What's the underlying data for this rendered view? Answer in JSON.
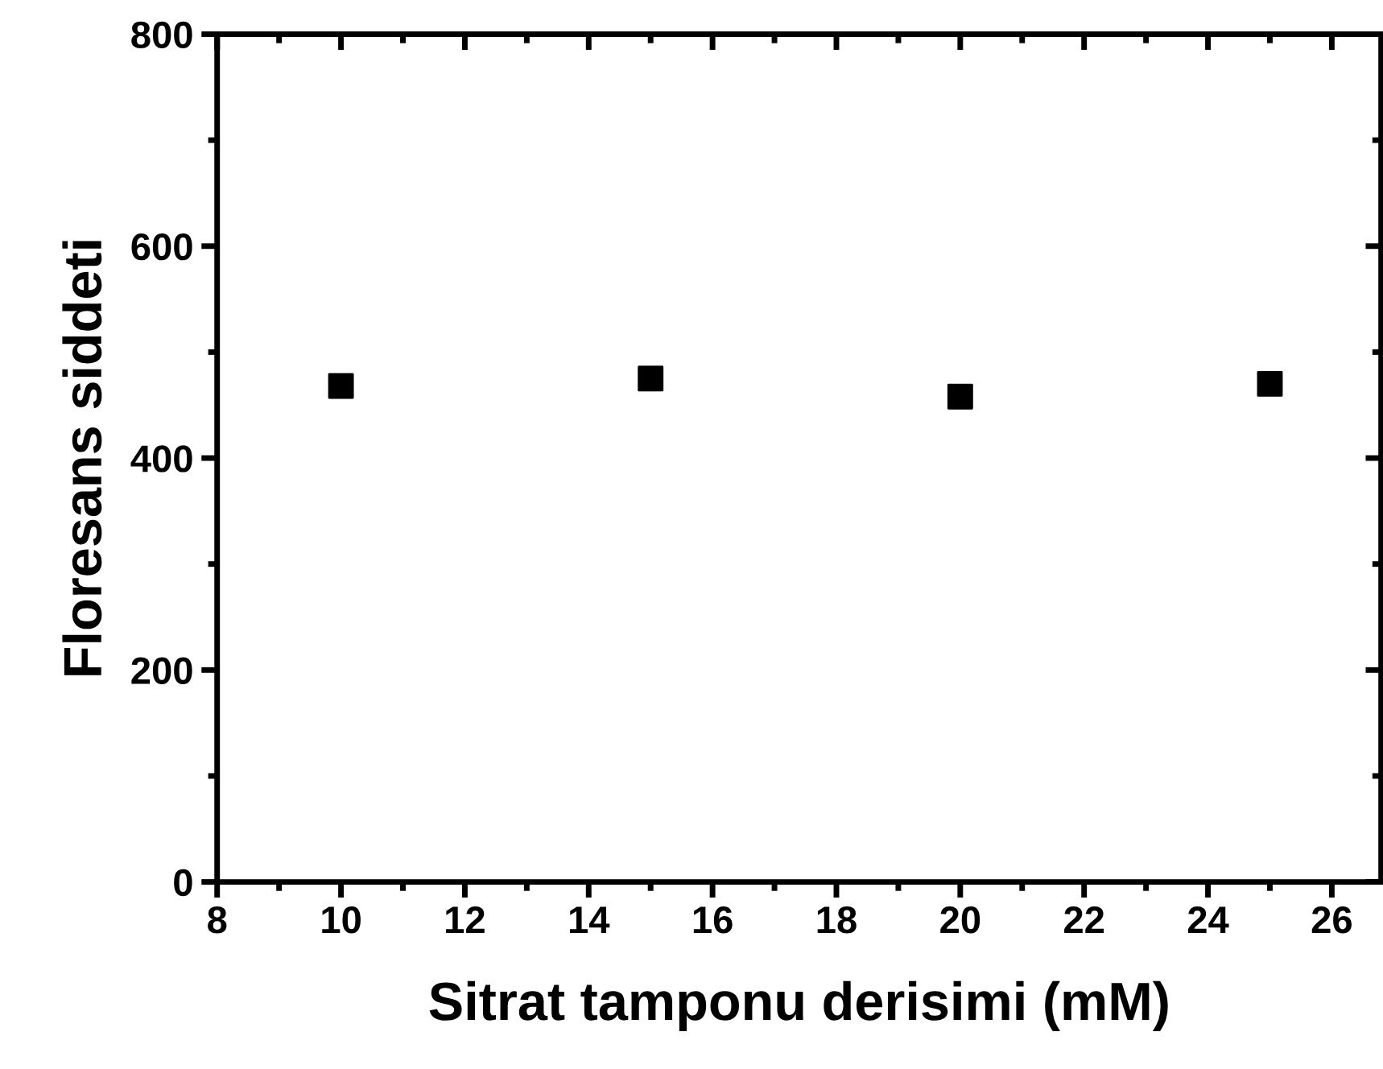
{
  "chart_data": {
    "type": "scatter",
    "xlabel": "Sitrat tamponu derisimi (mM)",
    "ylabel": "Floresans siddeti",
    "x": [
      10,
      15,
      20,
      25
    ],
    "series": [
      {
        "color": "#000000",
        "values": [
          468,
          475,
          458,
          470
        ]
      }
    ],
    "marker": "square",
    "xlim": [
      8,
      26.8
    ],
    "xticks": [
      8,
      10,
      12,
      14,
      16,
      18,
      20,
      22,
      24,
      26
    ],
    "ylim": [
      0,
      800
    ],
    "yticks": [
      0,
      200,
      400,
      600,
      800
    ],
    "grid": false,
    "legend": false
  }
}
